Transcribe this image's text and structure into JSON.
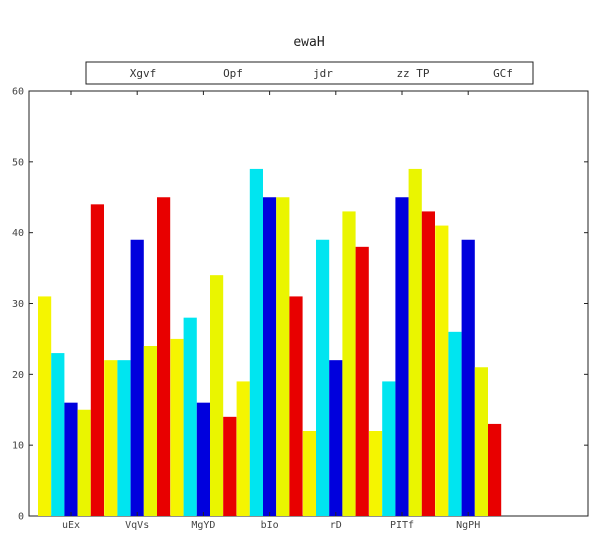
{
  "chart_data": {
    "type": "bar",
    "title": "ewaH",
    "xlabel": "",
    "ylabel": "",
    "ylim": [
      0,
      60
    ],
    "yticks": [
      0,
      10,
      20,
      30,
      40,
      50,
      60
    ],
    "grid": false,
    "legend_position": "top",
    "categories": [
      "uEx",
      "VqVs",
      "MgYD",
      "bIo",
      "rD",
      "PITf",
      "NgPH"
    ],
    "series": [
      {
        "name": "Xgvf",
        "color": "#f5f500",
        "values": [
          31,
          22,
          25,
          19,
          12,
          12,
          41
        ]
      },
      {
        "name": "Opf",
        "color": "#00e5f0",
        "values": [
          23,
          22,
          28,
          49,
          39,
          19,
          26
        ]
      },
      {
        "name": "jdr",
        "color": "#0000dd",
        "values": [
          16,
          39,
          16,
          45,
          22,
          45,
          39
        ]
      },
      {
        "name": "zz TP",
        "color": "#eaf500",
        "values": [
          15,
          24,
          34,
          45,
          43,
          49,
          21
        ]
      },
      {
        "name": "GCf",
        "color": "#e80000",
        "values": [
          44,
          45,
          14,
          31,
          38,
          43,
          13
        ]
      }
    ]
  }
}
